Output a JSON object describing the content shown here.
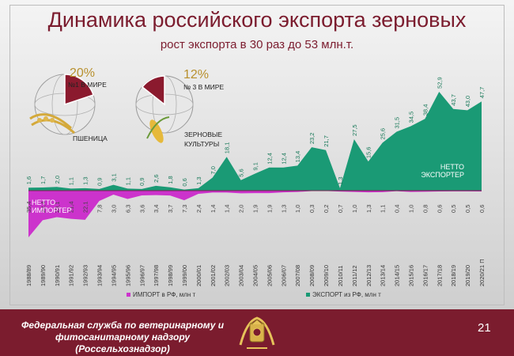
{
  "slide": {
    "title": "Динамика российского экспорта зерновых",
    "subtitle": "рост экспорта в 30 раз до 53 млн.т.",
    "page_number": "21",
    "footer_lines": [
      "Федеральная служба по ветеринарному и",
      "фитосанитарному надзору",
      "(Россельхознадзор)"
    ]
  },
  "globes": [
    {
      "percent": "20%",
      "rank": "№1 В МИРЕ",
      "label": "ПШЕНИЦА"
    },
    {
      "percent": "12%",
      "rank": "№ 3 В МИРЕ",
      "label_lines": [
        "ЗЕРНОВЫЕ",
        "КУЛЬТУРЫ"
      ]
    }
  ],
  "colors": {
    "export": "#1a9a75",
    "import": "#cc33cc",
    "title": "#7b1c2e",
    "globe_slice": "#8b1a2e"
  },
  "chart_data": {
    "type": "area",
    "categories": [
      "1988/89",
      "1989/90",
      "1990/91",
      "1991/92",
      "1992/93",
      "1993/94",
      "1994/95",
      "1995/96",
      "1996/97",
      "1997/98",
      "1998/99",
      "1999/00",
      "2000/01",
      "2001/02",
      "2002/03",
      "2003/04",
      "2004/05",
      "2005/06",
      "2006/07",
      "2007/08",
      "2008/09",
      "2009/10",
      "2010/11",
      "2011/12",
      "2012/13",
      "2013/14",
      "2014/15",
      "2015/16",
      "2016/17",
      "2017/18",
      "2018/19",
      "2019/20",
      "2020/21 П"
    ],
    "series": [
      {
        "name": "ИМПОРТ в РФ, млн т",
        "color": "#cc33cc",
        "values": [
          35.4,
          22.4,
          20.1,
          21.4,
          22.1,
          7.8,
          3.0,
          6.3,
          3.6,
          3.4,
          3.7,
          7.3,
          2.4,
          1.4,
          1.4,
          2.0,
          1.9,
          1.9,
          1.3,
          1.0,
          0.3,
          0.2,
          0.7,
          1.0,
          1.3,
          1.1,
          0.4,
          1.0,
          0.8,
          0.6,
          0.5,
          0.5,
          0.6
        ]
      },
      {
        "name": "ЭКСПОРТ из РФ, млн т",
        "color": "#1a9a75",
        "values": [
          1.6,
          1.7,
          2.0,
          1.1,
          1.3,
          0.9,
          3.1,
          1.1,
          0.9,
          2.6,
          1.8,
          0.6,
          1.3,
          7.0,
          18.1,
          5.6,
          9.1,
          12.4,
          12.4,
          13.4,
          23.2,
          21.7,
          1.3,
          27.5,
          15.6,
          25.6,
          31.5,
          34.5,
          38.4,
          52.9,
          43.7,
          43.0,
          47.7
        ]
      }
    ],
    "import_labels": [
      "35,4",
      "22,4",
      "20,1",
      "21,4",
      "22,1",
      "7,8",
      "3,0",
      "6,3",
      "3,6",
      "3,4",
      "3,7",
      "7,3",
      "2,4",
      "1,4",
      "1,4",
      "2,0",
      "1,9",
      "1,9",
      "1,3",
      "1,0",
      "0,3",
      "0,2",
      "0,7",
      "1,0",
      "1,3",
      "1,1",
      "0,4",
      "1,0",
      "0,8",
      "0,6",
      "0,5",
      "0,5",
      "0,6"
    ],
    "export_labels": [
      "1,6",
      "1,7",
      "2,0",
      "1,1",
      "1,3",
      "0,9",
      "3,1",
      "1,1",
      "0,9",
      "2,6",
      "1,8",
      "0,6",
      "1,3",
      "7,0",
      "18,1",
      "5,6",
      "9,1",
      "12,4",
      "12,4",
      "13,4",
      "23,2",
      "21,7",
      "1,3",
      "27,5",
      "15,6",
      "25,6",
      "31,5",
      "34,5",
      "38,4",
      "52,9",
      "43,7",
      "43,0",
      "47,7"
    ],
    "annotations": {
      "net_exporter": [
        "НЕТТО",
        "ЭКСПОРТЕР"
      ],
      "net_importer": [
        "НЕТТО",
        "ИМПОРТЕР"
      ]
    },
    "legend_position": "bottom",
    "grid": false
  }
}
